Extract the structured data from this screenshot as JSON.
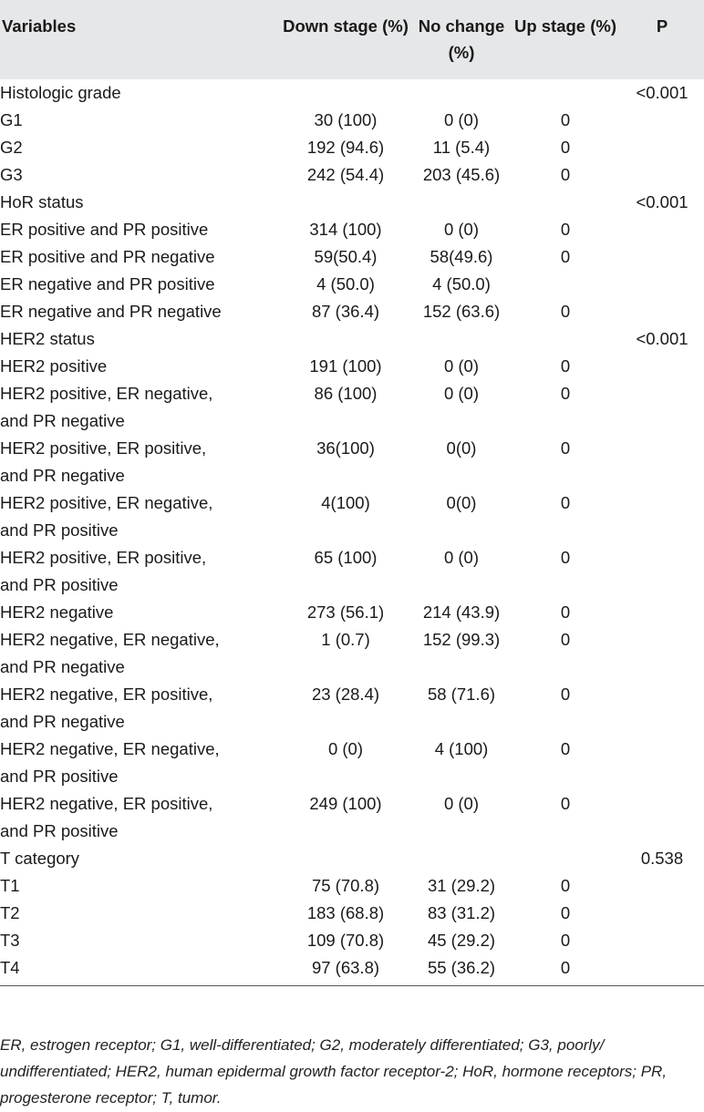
{
  "headers": [
    "Variables",
    "Down stage (%)",
    "No change (%)",
    "Up stage (%)",
    "P"
  ],
  "rows": [
    {
      "level": 0,
      "label": "Histologic grade",
      "down": "",
      "nochange": "",
      "up": "",
      "p": "<0.001"
    },
    {
      "level": 1,
      "label": "G1",
      "down": "30 (100)",
      "nochange": "0 (0)",
      "up": "0",
      "p": ""
    },
    {
      "level": 1,
      "label": "G2",
      "down": "192 (94.6)",
      "nochange": "11 (5.4)",
      "up": "0",
      "p": ""
    },
    {
      "level": 1,
      "label": "G3",
      "down": "242 (54.4)",
      "nochange": "203 (45.6)",
      "up": "0",
      "p": ""
    },
    {
      "level": 0,
      "label": "HoR status",
      "down": "",
      "nochange": "",
      "up": "",
      "p": "<0.001"
    },
    {
      "level": 1,
      "label": "ER positive and PR positive",
      "down": "314 (100)",
      "nochange": "0 (0)",
      "up": "0",
      "p": ""
    },
    {
      "level": 1,
      "label": "ER positive and PR negative",
      "down": "59(50.4)",
      "nochange": "58(49.6)",
      "up": "0",
      "p": ""
    },
    {
      "level": 1,
      "label": "ER negative and PR positive",
      "down": "4 (50.0)",
      "nochange": "4 (50.0)",
      "up": "",
      "p": ""
    },
    {
      "level": 1,
      "label": "ER negative and PR negative",
      "down": "87 (36.4)",
      "nochange": "152 (63.6)",
      "up": "0",
      "p": ""
    },
    {
      "level": 0,
      "label": "HER2 status",
      "down": "",
      "nochange": "",
      "up": "",
      "p": "<0.001"
    },
    {
      "level": 1,
      "label": "HER2 positive",
      "down": "191 (100)",
      "nochange": "0 (0)",
      "up": "0",
      "p": ""
    },
    {
      "level": 2,
      "label": "HER2 positive, ER negative,",
      "label2": "and PR negative",
      "down": "86 (100)",
      "nochange": "0 (0)",
      "up": "0",
      "p": ""
    },
    {
      "level": 2,
      "label": "HER2 positive, ER positive,",
      "label2": "and PR negative",
      "down": "36(100)",
      "nochange": "0(0)",
      "up": "0",
      "p": ""
    },
    {
      "level": 2,
      "label": "HER2 positive, ER negative,",
      "label2": "and PR positive",
      "down": "4(100)",
      "nochange": "0(0)",
      "up": "0",
      "p": ""
    },
    {
      "level": 2,
      "label": "HER2 positive, ER positive,",
      "label2": "and PR positive",
      "down": "65 (100)",
      "nochange": "0 (0)",
      "up": "0",
      "p": ""
    },
    {
      "level": 1,
      "label": "HER2 negative",
      "down": "273 (56.1)",
      "nochange": "214 (43.9)",
      "up": "0",
      "p": ""
    },
    {
      "level": 2,
      "label": "HER2 negative, ER negative,",
      "label2": "and PR negative",
      "down": "1 (0.7)",
      "nochange": "152 (99.3)",
      "up": "0",
      "p": ""
    },
    {
      "level": 2,
      "label": "HER2 negative, ER positive,",
      "label2": "and PR negative",
      "down": "23 (28.4)",
      "nochange": "58 (71.6)",
      "up": "0",
      "p": ""
    },
    {
      "level": 2,
      "label": "HER2 negative, ER negative,",
      "label2": "and PR positive",
      "down": "0 (0)",
      "nochange": "4 (100)",
      "up": "0",
      "p": ""
    },
    {
      "level": 2,
      "label": "HER2 negative, ER positive,",
      "label2": "and PR positive",
      "down": "249 (100)",
      "nochange": "0 (0)",
      "up": "0",
      "p": ""
    },
    {
      "level": 0,
      "label": "T category",
      "down": "",
      "nochange": "",
      "up": "",
      "p": "0.538"
    },
    {
      "level": 1,
      "label": "T1",
      "down": "75 (70.8)",
      "nochange": "31 (29.2)",
      "up": "0",
      "p": ""
    },
    {
      "level": 1,
      "label": "T2",
      "down": "183 (68.8)",
      "nochange": "83 (31.2)",
      "up": "0",
      "p": ""
    },
    {
      "level": 1,
      "label": "T3",
      "down": "109 (70.8)",
      "nochange": "45 (29.2)",
      "up": "0",
      "p": ""
    },
    {
      "level": 1,
      "label": "T4",
      "down": "97 (63.8)",
      "nochange": "55 (36.2)",
      "up": "0",
      "p": ""
    }
  ],
  "footnote": "ER, estrogen receptor; G1, well-differentiated; G2, moderately differentiated; G3, poorly/ undifferentiated; HER2, human epidermal growth factor receptor-2; HoR, hormone receptors; PR, progesterone receptor; T, tumor.",
  "colors": {
    "header_bg": "#e6e7e8",
    "text": "#1a1a1a"
  }
}
